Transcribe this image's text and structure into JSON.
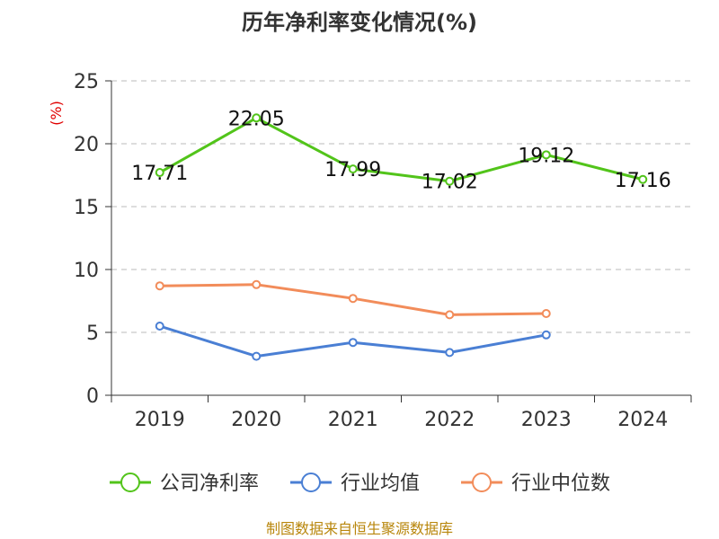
{
  "title": "历年净利率变化情况(%)",
  "source": "制图数据来自恒生聚源数据库",
  "chart_data": {
    "type": "line",
    "title": "历年净利率变化情况(%)",
    "ylabel": "(%)",
    "categories": [
      "2019",
      "2020",
      "2021",
      "2022",
      "2023",
      "2024"
    ],
    "ylim": [
      0,
      25
    ],
    "yticks": [
      0,
      5,
      10,
      15,
      20,
      25
    ],
    "grid": true,
    "legend": "bottom",
    "series": [
      {
        "name": "公司净利率",
        "color": "#52c41a",
        "values": [
          17.71,
          22.05,
          17.99,
          17.02,
          19.12,
          17.16
        ],
        "labels": [
          "17.71",
          "22.05",
          "17.99",
          "17.02",
          "19.12",
          "17.16"
        ]
      },
      {
        "name": "行业均值",
        "color": "#4a7fd4",
        "values": [
          5.5,
          3.1,
          4.2,
          3.4,
          4.8,
          null
        ]
      },
      {
        "name": "行业中位数",
        "color": "#f28c5a",
        "values": [
          8.7,
          8.8,
          7.7,
          6.4,
          6.5,
          null
        ]
      }
    ]
  }
}
